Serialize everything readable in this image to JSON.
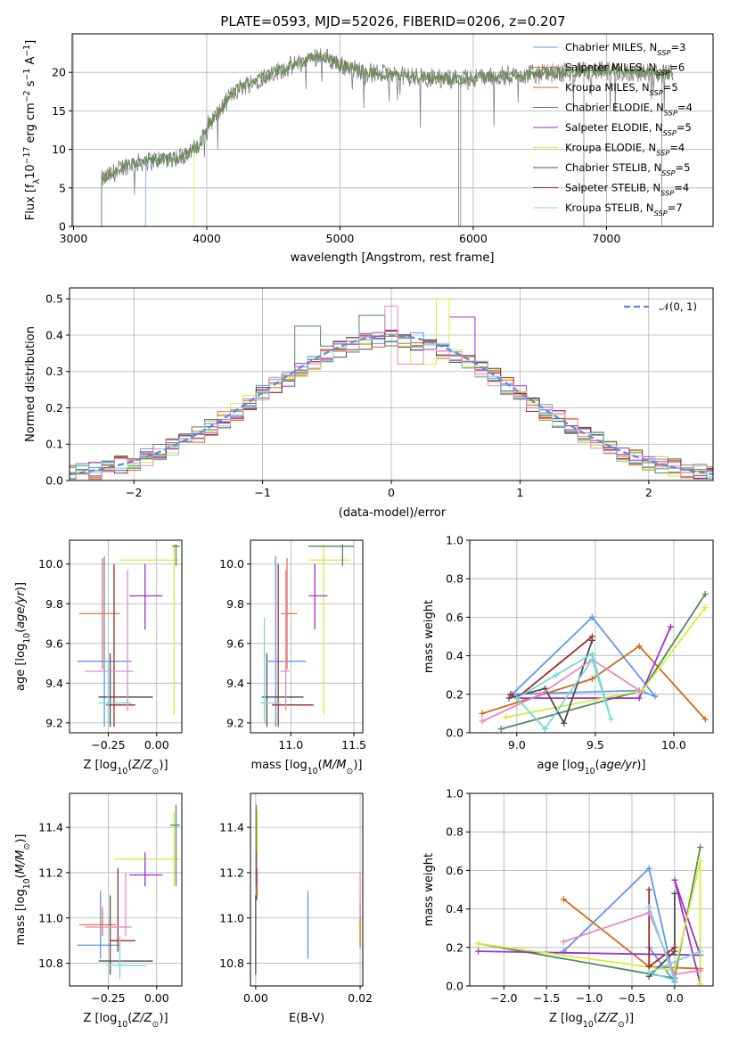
{
  "title": "PLATE=0593, MJD=52026, FIBERID=0206, z=0.207",
  "colors": {
    "chabrier_miles": "#6495ed",
    "salpeter_miles": "#e8743b",
    "kroupa_miles": "#d2691e",
    "chabrier_elodie": "#55885a",
    "salpeter_elodie": "#9a32cd",
    "kroupa_elodie": "#d4ed3a",
    "chabrier_stelib": "#4d4d4d",
    "salpeter_stelib": "#a52a2a",
    "kroupa_stelib": "#7ad6dc",
    "data": "#808080",
    "normal": "#5b8dd9",
    "pink": "#e889c0"
  },
  "chart_data": [
    {
      "type": "line",
      "name": "spectrum",
      "title": "PLATE=0593, MJD=52026, FIBERID=0206, z=0.207",
      "xlabel": "wavelength [Angstrom, rest frame]",
      "ylabel": "Flux [fλ10⁻¹⁷ erg cm⁻² s⁻¹ A⁻¹]",
      "xlim": [
        2990,
        7800
      ],
      "ylim": [
        0,
        25
      ],
      "xticks": [
        3000,
        4000,
        5000,
        6000,
        7000
      ],
      "yticks": [
        0,
        5,
        10,
        15,
        20
      ],
      "legend_position": "top-right",
      "legend": [
        {
          "label": "Chabrier MILES, N_SSP=3",
          "text": "Chabrier MILES, N",
          "sub": "SSP",
          "num": "=3",
          "color": "#6495ed"
        },
        {
          "label": "Salpeter MILES, N_SSP=6",
          "text": "Salpeter MILES, N",
          "sub": "SSP",
          "num": "=6",
          "color": "#e8743b"
        },
        {
          "label": "Kroupa MILES, N_SSP=5",
          "text": "Kroupa MILES, N",
          "sub": "SSP",
          "num": "=5",
          "color": "#d2691e"
        },
        {
          "label": "Chabrier ELODIE, N_SSP=4",
          "text": "Chabrier ELODIE, N",
          "sub": "SSP",
          "num": "=4",
          "color": "#55885a"
        },
        {
          "label": "Salpeter ELODIE, N_SSP=5",
          "text": "Salpeter ELODIE, N",
          "sub": "SSP",
          "num": "=5",
          "color": "#9a32cd"
        },
        {
          "label": "Kroupa ELODIE, N_SSP=4",
          "text": "Kroupa ELODIE, N",
          "sub": "SSP",
          "num": "=4",
          "color": "#d4ed3a"
        },
        {
          "label": "Chabrier STELIB, N_SSP=5",
          "text": "Chabrier STELIB, N",
          "sub": "SSP",
          "num": "=5",
          "color": "#4d4d4d"
        },
        {
          "label": "Salpeter STELIB, N_SSP=4",
          "text": "Salpeter STELIB, N",
          "sub": "SSP",
          "num": "=4",
          "color": "#a52a2a"
        },
        {
          "label": "Kroupa STELIB, N_SSP=7",
          "text": "Kroupa STELIB, N",
          "sub": "SSP",
          "num": "=7",
          "color": "#7ad6dc"
        }
      ],
      "continuum_knots": [
        [
          3210,
          6.0
        ],
        [
          3400,
          8.0
        ],
        [
          3600,
          8.6
        ],
        [
          3800,
          9.0
        ],
        [
          3950,
          10.5
        ],
        [
          4000,
          13.0
        ],
        [
          4100,
          15.0
        ],
        [
          4200,
          17.5
        ],
        [
          4300,
          18.5
        ],
        [
          4500,
          20.0
        ],
        [
          4700,
          21.2
        ],
        [
          4850,
          22.3
        ],
        [
          5000,
          21.0
        ],
        [
          5200,
          20.0
        ],
        [
          5500,
          19.5
        ],
        [
          5800,
          19.2
        ],
        [
          6000,
          19.3
        ],
        [
          6300,
          19.6
        ],
        [
          6600,
          19.9
        ],
        [
          6900,
          20.2
        ],
        [
          7200,
          20.0
        ],
        [
          7500,
          19.8
        ]
      ],
      "model_starts": {
        "chabrier_miles": 3540,
        "kroupa_elodie": 3905,
        "others": 3210
      },
      "data_range": [
        3210,
        7500
      ],
      "dropouts": [
        5890,
        5905,
        6830,
        7415
      ]
    },
    {
      "type": "bar",
      "name": "residual_histogram",
      "xlabel": "(data-model)/error",
      "ylabel": "Normed distribution",
      "xlim": [
        -2.5,
        2.5
      ],
      "ylim": [
        0,
        0.53
      ],
      "xticks": [
        -2,
        -1,
        0,
        1,
        2
      ],
      "yticks": [
        0.0,
        0.1,
        0.2,
        0.3,
        0.4,
        0.5
      ],
      "bin_width": 0.1,
      "legend_label": "𝒩(0, 1)",
      "legend_position": "top-right",
      "special_bins": [
        {
          "color": "#d4ed3a",
          "x": 0.35,
          "y": 0.5
        },
        {
          "color": "#e889c0",
          "x": 0.0,
          "y": 0.48
        },
        {
          "color": "#55885a",
          "x": -0.15,
          "y": 0.455
        },
        {
          "color": "#9a32cd",
          "x": 0.55,
          "y": 0.45
        },
        {
          "color": "#55885a",
          "x": -0.65,
          "y": 0.425
        },
        {
          "color": "#e889c0",
          "x": 0.15,
          "y": 0.32
        },
        {
          "color": "#d4ed3a",
          "x": 0.25,
          "y": 0.32
        }
      ]
    },
    {
      "type": "scatter",
      "name": "age_vs_Z",
      "xlabel": "Z [log₁₀(Z/Z⊙)]",
      "ylabel": "age  [log₁₀(age/yr)]",
      "xlim": [
        -0.45,
        0.13
      ],
      "ylim": [
        9.15,
        10.12
      ],
      "xticks": [
        -0.25,
        0.0
      ],
      "yticks": [
        9.2,
        9.4,
        9.6,
        9.8,
        10.0
      ],
      "points": [
        {
          "color": "#6495ed",
          "x": -0.27,
          "y": 9.51,
          "xlo": -0.41,
          "xhi": -0.13,
          "ylo": 9.18,
          "yhi": 10.04
        },
        {
          "color": "#e8743b",
          "x": -0.28,
          "y": 9.75,
          "xlo": -0.4,
          "xhi": -0.19,
          "ylo": 9.47,
          "yhi": 10.03
        },
        {
          "color": "#d4ed3a",
          "x": 0.09,
          "y": 10.02,
          "xlo": -0.19,
          "xhi": 0.12,
          "ylo": 9.24,
          "yhi": 10.1
        },
        {
          "color": "#55885a",
          "x": 0.1,
          "y": 10.09,
          "xlo": 0.08,
          "xhi": 0.12,
          "ylo": 9.99,
          "yhi": 10.1
        },
        {
          "color": "#9a32cd",
          "x": -0.06,
          "y": 9.84,
          "xlo": -0.14,
          "xhi": 0.03,
          "ylo": 9.67,
          "yhi": 10.0
        },
        {
          "color": "#4d4d4d",
          "x": -0.24,
          "y": 9.33,
          "xlo": -0.3,
          "xhi": -0.02,
          "ylo": 9.18,
          "yhi": 9.55
        },
        {
          "color": "#a52a2a",
          "x": -0.22,
          "y": 9.29,
          "xlo": -0.26,
          "xhi": -0.11,
          "ylo": 9.18,
          "yhi": 10.0
        },
        {
          "color": "#e889c0",
          "x": -0.15,
          "y": 9.46,
          "xlo": -0.37,
          "xhi": -0.12,
          "ylo": 9.26,
          "yhi": 9.97
        },
        {
          "color": "#7ad6dc",
          "x": -0.25,
          "y": 9.3,
          "xlo": -0.3,
          "xhi": -0.13,
          "ylo": 9.2,
          "yhi": 9.5
        }
      ]
    },
    {
      "type": "scatter",
      "name": "age_vs_mass",
      "xlabel": "mass [log₁₀(M/M⊙)]",
      "ylabel": "",
      "xlim": [
        10.68,
        11.57
      ],
      "ylim": [
        9.15,
        10.12
      ],
      "xticks": [
        11.0,
        11.5
      ],
      "yticks": [
        9.2,
        9.4,
        9.6,
        9.8,
        10.0
      ],
      "points": [
        {
          "color": "#6495ed",
          "x": 10.88,
          "y": 9.51,
          "xlo": 10.82,
          "xhi": 11.12,
          "ylo": 9.18,
          "yhi": 10.04
        },
        {
          "color": "#e8743b",
          "x": 10.97,
          "y": 9.75,
          "xlo": 10.92,
          "xhi": 11.05,
          "ylo": 9.47,
          "yhi": 10.03
        },
        {
          "color": "#d4ed3a",
          "x": 11.26,
          "y": 10.02,
          "xlo": 11.14,
          "xhi": 11.47,
          "ylo": 9.24,
          "yhi": 10.1
        },
        {
          "color": "#55885a",
          "x": 11.41,
          "y": 10.09,
          "xlo": 11.14,
          "xhi": 11.5,
          "ylo": 9.99,
          "yhi": 10.1
        },
        {
          "color": "#9a32cd",
          "x": 11.19,
          "y": 9.84,
          "xlo": 11.14,
          "xhi": 11.29,
          "ylo": 9.67,
          "yhi": 10.0
        },
        {
          "color": "#4d4d4d",
          "x": 10.81,
          "y": 9.33,
          "xlo": 10.77,
          "xhi": 11.1,
          "ylo": 9.18,
          "yhi": 9.55
        },
        {
          "color": "#a52a2a",
          "x": 10.9,
          "y": 9.29,
          "xlo": 10.85,
          "xhi": 11.18,
          "ylo": 9.18,
          "yhi": 10.0
        },
        {
          "color": "#e889c0",
          "x": 10.96,
          "y": 9.46,
          "xlo": 10.92,
          "xhi": 10.99,
          "ylo": 9.26,
          "yhi": 9.97
        },
        {
          "color": "#7ad6dc",
          "x": 10.79,
          "y": 9.3,
          "xlo": 10.76,
          "xhi": 10.92,
          "ylo": 9.2,
          "yhi": 9.73
        }
      ]
    },
    {
      "type": "line",
      "name": "mass_weight_vs_age",
      "xlabel": "age  [log₁₀(age/yr)]",
      "ylabel": "mass weight",
      "xlim": [
        8.7,
        10.25
      ],
      "ylim": [
        0,
        1
      ],
      "xticks": [
        9.0,
        9.5,
        10.0
      ],
      "yticks": [
        0.0,
        0.2,
        0.4,
        0.6,
        0.8,
        1.0
      ],
      "series": [
        {
          "color": "#6495ed",
          "x": [
            9.48,
            9.88,
            9.78,
            8.97,
            9.48
          ],
          "y": [
            0.6,
            0.19,
            0.22,
            0.2,
            0.6
          ]
        },
        {
          "color": "#d2691e",
          "x": [
            8.78,
            9.48,
            9.78,
            10.2
          ],
          "y": [
            0.1,
            0.28,
            0.45,
            0.07
          ]
        },
        {
          "color": "#55885a",
          "x": [
            8.9,
            9.8,
            10.2
          ],
          "y": [
            0.02,
            0.22,
            0.72
          ]
        },
        {
          "color": "#9a32cd",
          "x": [
            9.0,
            9.78,
            9.98
          ],
          "y": [
            0.18,
            0.18,
            0.55
          ]
        },
        {
          "color": "#d4ed3a",
          "x": [
            8.93,
            9.8,
            10.2
          ],
          "y": [
            0.08,
            0.22,
            0.65
          ]
        },
        {
          "color": "#4d4d4d",
          "x": [
            8.95,
            9.18,
            9.3,
            9.48
          ],
          "y": [
            0.18,
            0.23,
            0.05,
            0.48
          ]
        },
        {
          "color": "#a52a2a",
          "x": [
            8.96,
            9.0,
            9.48
          ],
          "y": [
            0.2,
            0.18,
            0.5
          ]
        },
        {
          "color": "#e889c0",
          "x": [
            8.78,
            9.15,
            9.48,
            9.78
          ],
          "y": [
            0.06,
            0.2,
            0.38,
            0.22
          ]
        },
        {
          "color": "#7ad6dc",
          "x": [
            9.0,
            9.25,
            9.48,
            9.6,
            9.48,
            9.18,
            9.0
          ],
          "y": [
            0.18,
            0.3,
            0.41,
            0.07,
            0.38,
            0.02,
            0.18
          ]
        }
      ]
    },
    {
      "type": "scatter",
      "name": "mass_vs_Z",
      "xlabel": "Z [log₁₀(Z/Z⊙)]",
      "ylabel": "mass [log₁₀(M/M⊙)]",
      "xlim": [
        -0.45,
        0.13
      ],
      "ylim": [
        10.7,
        11.55
      ],
      "xticks": [
        -0.25,
        0.0
      ],
      "yticks": [
        10.8,
        11.0,
        11.2,
        11.4
      ],
      "points": [
        {
          "color": "#6495ed",
          "x": -0.29,
          "y": 10.88,
          "xlo": -0.41,
          "xhi": -0.19,
          "ylo": 10.82,
          "yhi": 11.12
        },
        {
          "color": "#e8743b",
          "x": -0.28,
          "y": 10.97,
          "xlo": -0.4,
          "xhi": -0.21,
          "ylo": 10.92,
          "yhi": 11.05
        },
        {
          "color": "#d4ed3a",
          "x": 0.09,
          "y": 11.26,
          "xlo": -0.22,
          "xhi": 0.12,
          "ylo": 11.14,
          "yhi": 11.47
        },
        {
          "color": "#55885a",
          "x": 0.1,
          "y": 11.41,
          "xlo": 0.07,
          "xhi": 0.12,
          "ylo": 11.14,
          "yhi": 11.5
        },
        {
          "color": "#9a32cd",
          "x": -0.06,
          "y": 11.19,
          "xlo": -0.14,
          "xhi": 0.03,
          "ylo": 11.14,
          "yhi": 11.29
        },
        {
          "color": "#4d4d4d",
          "x": -0.24,
          "y": 10.81,
          "xlo": -0.3,
          "xhi": -0.02,
          "ylo": 10.75,
          "yhi": 11.1
        },
        {
          "color": "#a52a2a",
          "x": -0.2,
          "y": 10.9,
          "xlo": -0.24,
          "xhi": -0.11,
          "ylo": 10.85,
          "yhi": 11.22
        },
        {
          "color": "#e889c0",
          "x": -0.16,
          "y": 10.96,
          "xlo": -0.37,
          "xhi": -0.13,
          "ylo": 10.92,
          "yhi": 11.2
        },
        {
          "color": "#7ad6dc",
          "x": -0.19,
          "y": 10.79,
          "xlo": -0.26,
          "xhi": -0.05,
          "ylo": 10.73,
          "yhi": 10.92
        }
      ]
    },
    {
      "type": "scatter",
      "name": "mass_vs_EBV",
      "xlabel": "E(B-V)",
      "ylabel": "",
      "xlim": [
        -0.001,
        0.0205
      ],
      "ylim": [
        10.7,
        11.55
      ],
      "xticks": [
        0.0,
        0.02
      ],
      "yticks": [
        10.8,
        11.0,
        11.2,
        11.4
      ],
      "points": [
        {
          "color": "#6495ed",
          "x": 0.01,
          "y": 10.97,
          "ylo": 10.82,
          "yhi": 11.12
        },
        {
          "color": "#d2691e",
          "x": 0.02,
          "y": 10.97,
          "ylo": 10.87,
          "yhi": 11.07
        },
        {
          "color": "#e889c0",
          "x": 0.02,
          "y": 11.1,
          "ylo": 11.0,
          "yhi": 11.2
        },
        {
          "color": "#d4ed3a",
          "x": 0.0003,
          "y": 11.3,
          "ylo": 11.1,
          "yhi": 11.48
        },
        {
          "color": "#a52a2a",
          "x": 0.0002,
          "y": 11.15,
          "ylo": 11.08,
          "yhi": 11.22
        },
        {
          "color": "#55885a",
          "x": 0.0001,
          "y": 11.35,
          "ylo": 11.14,
          "yhi": 11.5
        },
        {
          "color": "#9a32cd",
          "x": 0.0001,
          "y": 11.22,
          "ylo": 11.14,
          "yhi": 11.29
        },
        {
          "color": "#7ad6dc",
          "x": 0.0,
          "y": 10.8,
          "ylo": 10.73,
          "yhi": 10.92
        },
        {
          "color": "#4d4d4d",
          "x": 0.0,
          "y": 10.95,
          "ylo": 10.75,
          "yhi": 11.1
        }
      ]
    },
    {
      "type": "line",
      "name": "mass_weight_vs_Z",
      "xlabel": "Z [log₁₀(Z/Z⊙)]",
      "ylabel": "mass weight",
      "xlim": [
        -2.4,
        0.45
      ],
      "ylim": [
        0,
        1
      ],
      "xticks": [
        -2.0,
        -1.5,
        -1.0,
        -0.5,
        0.0
      ],
      "yticks": [
        0.0,
        0.2,
        0.4,
        0.6,
        0.8,
        1.0
      ],
      "series": [
        {
          "color": "#6495ed",
          "x": [
            -1.3,
            -0.3,
            0.0,
            -0.3
          ],
          "y": [
            0.18,
            0.61,
            0.02,
            0.2
          ]
        },
        {
          "color": "#d2691e",
          "x": [
            -1.3,
            -0.3,
            0.3
          ],
          "y": [
            0.45,
            0.1,
            0.09
          ]
        },
        {
          "color": "#55885a",
          "x": [
            -2.3,
            0.0,
            0.3
          ],
          "y": [
            0.22,
            0.04,
            0.72
          ]
        },
        {
          "color": "#9a32cd",
          "x": [
            -2.3,
            0.3,
            0.0,
            0.3
          ],
          "y": [
            0.18,
            0.16,
            0.55,
            0.01
          ]
        },
        {
          "color": "#d4ed3a",
          "x": [
            -2.3,
            0.0,
            0.3,
            0.3
          ],
          "y": [
            0.22,
            0.08,
            0.65,
            0.01
          ]
        },
        {
          "color": "#4d4d4d",
          "x": [
            -0.3,
            0.0,
            0.0
          ],
          "y": [
            0.05,
            0.18,
            0.48
          ]
        },
        {
          "color": "#a52a2a",
          "x": [
            -0.3,
            -0.3,
            0.0
          ],
          "y": [
            0.5,
            0.1,
            0.2
          ]
        },
        {
          "color": "#e889c0",
          "x": [
            -1.3,
            -0.3,
            0.0,
            0.3
          ],
          "y": [
            0.23,
            0.38,
            0.06,
            0.08
          ]
        },
        {
          "color": "#7ad6dc",
          "x": [
            -0.3,
            0.0,
            -0.3,
            0.3
          ],
          "y": [
            0.41,
            0.03,
            0.07,
            0.18
          ]
        }
      ]
    }
  ]
}
